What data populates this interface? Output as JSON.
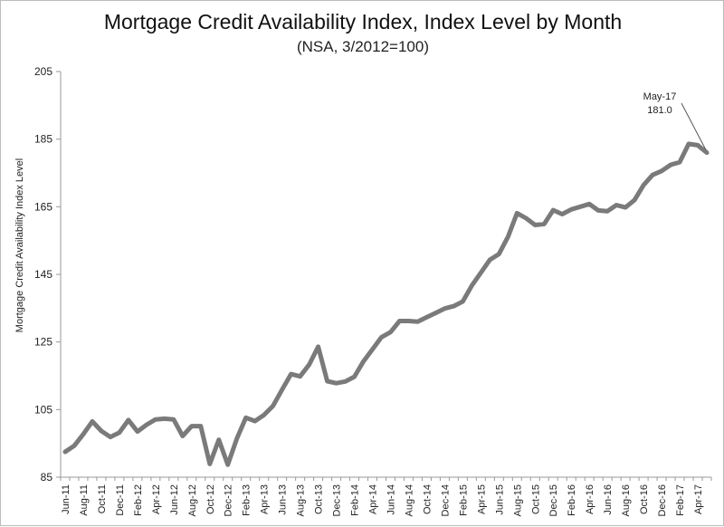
{
  "chart_data": {
    "type": "line",
    "title": "Mortgage Credit Availability Index, Index Level by Month",
    "subtitle": "(NSA, 3/2012=100)",
    "ylabel": "Mortgage Credit Availability Index Level",
    "xlabel": "",
    "ylim": [
      85,
      205
    ],
    "yticks": [
      85,
      105,
      125,
      145,
      165,
      185,
      205
    ],
    "grid": false,
    "legend": "none",
    "colors": {
      "line": "#7a7a7a",
      "axis": "#999999"
    },
    "x": [
      "Jun-11",
      "Jul-11",
      "Aug-11",
      "Sep-11",
      "Oct-11",
      "Nov-11",
      "Dec-11",
      "Jan-12",
      "Feb-12",
      "Mar-12",
      "Apr-12",
      "May-12",
      "Jun-12",
      "Jul-12",
      "Aug-12",
      "Sep-12",
      "Oct-12",
      "Nov-12",
      "Dec-12",
      "Jan-13",
      "Feb-13",
      "Mar-13",
      "Apr-13",
      "May-13",
      "Jun-13",
      "Jul-13",
      "Aug-13",
      "Sep-13",
      "Oct-13",
      "Nov-13",
      "Dec-13",
      "Jan-14",
      "Feb-14",
      "Mar-14",
      "Apr-14",
      "May-14",
      "Jun-14",
      "Jul-14",
      "Aug-14",
      "Sep-14",
      "Oct-14",
      "Nov-14",
      "Dec-14",
      "Jan-15",
      "Feb-15",
      "Mar-15",
      "Apr-15",
      "May-15",
      "Jun-15",
      "Jul-15",
      "Aug-15",
      "Sep-15",
      "Oct-15",
      "Nov-15",
      "Dec-15",
      "Jan-16",
      "Feb-16",
      "Mar-16",
      "Apr-16",
      "May-16",
      "Jun-16",
      "Jul-16",
      "Aug-16",
      "Sep-16",
      "Oct-16",
      "Nov-16",
      "Dec-16",
      "Jan-17",
      "Feb-17",
      "Mar-17",
      "Apr-17",
      "May-17"
    ],
    "xtick_labels": [
      "Jun-11",
      "Aug-11",
      "Oct-11",
      "Dec-11",
      "Feb-12",
      "Apr-12",
      "Jun-12",
      "Aug-12",
      "Oct-12",
      "Dec-12",
      "Feb-13",
      "Apr-13",
      "Jun-13",
      "Aug-13",
      "Oct-13",
      "Dec-13",
      "Feb-14",
      "Apr-14",
      "Jun-14",
      "Aug-14",
      "Oct-14",
      "Dec-14",
      "Feb-15",
      "Apr-15",
      "Jun-15",
      "Aug-15",
      "Oct-15",
      "Dec-15",
      "Feb-16",
      "Apr-16",
      "Jun-16",
      "Aug-16",
      "Oct-16",
      "Dec-16",
      "Feb-17",
      "Apr-17"
    ],
    "series": [
      {
        "values": [
          92.5,
          94.3,
          97.7,
          101.5,
          98.7,
          96.9,
          98.2,
          101.9,
          98.5,
          100.5,
          102.1,
          102.3,
          102.1,
          97.2,
          100.1,
          100.1,
          88.9,
          96.1,
          88.7,
          96.4,
          102.6,
          101.6,
          103.4,
          106.1,
          110.9,
          115.5,
          114.8,
          118.3,
          123.6,
          113.4,
          112.8,
          113.3,
          114.7,
          119.2,
          122.8,
          126.4,
          127.9,
          131.2,
          131.2,
          131.0,
          132.3,
          133.6,
          134.9,
          135.6,
          137.0,
          141.7,
          145.5,
          149.3,
          151.0,
          156.1,
          163.1,
          161.6,
          159.6,
          159.9,
          164.0,
          162.8,
          164.2,
          165.0,
          165.8,
          163.9,
          163.7,
          165.5,
          164.8,
          167.0,
          171.4,
          174.4,
          175.6,
          177.4,
          178.2,
          183.6,
          183.2,
          181.0
        ]
      }
    ],
    "annotations": [
      {
        "x": "May-17",
        "lines": [
          "May-17",
          "181.0"
        ]
      }
    ]
  }
}
